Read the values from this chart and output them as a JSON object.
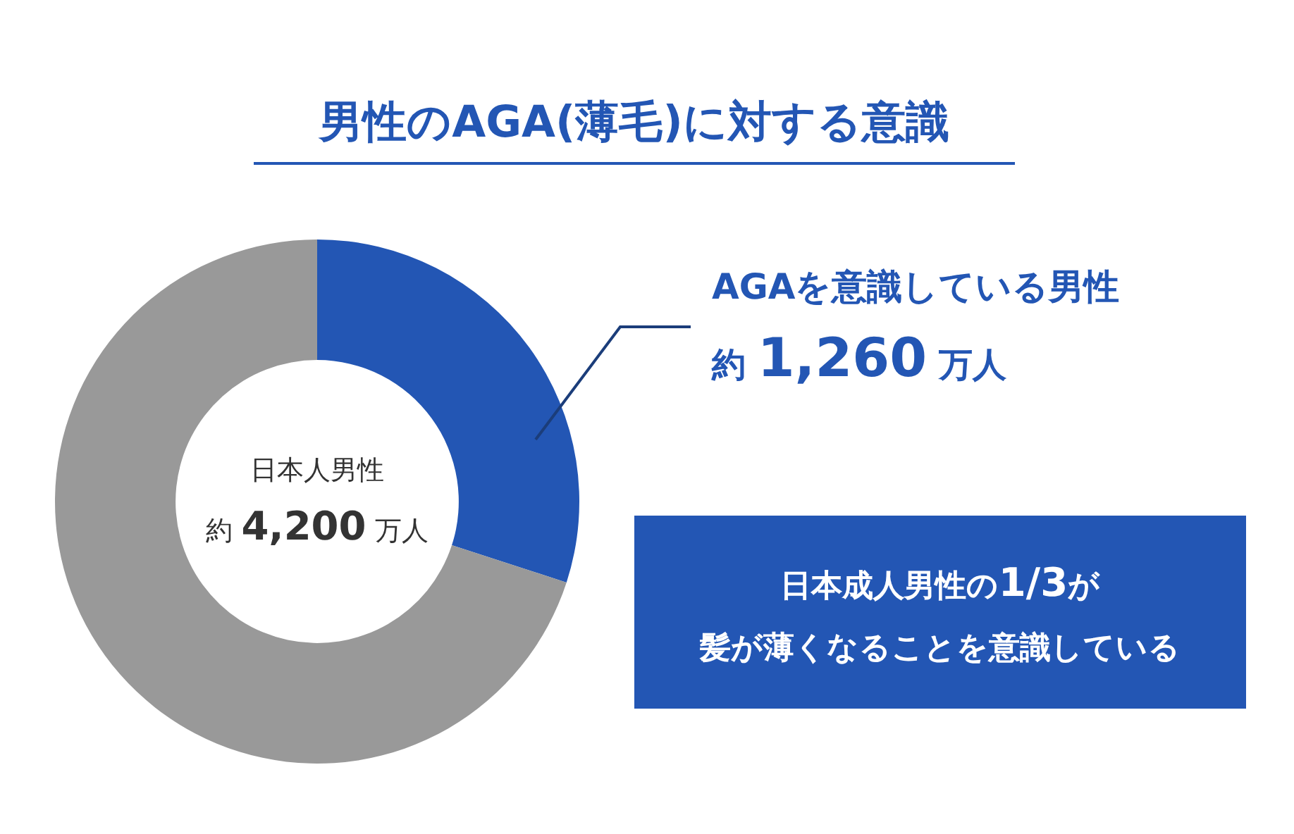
{
  "chart_data": {
    "type": "donut",
    "title": "男性のAGA(薄毛)に対する意識",
    "categories": [
      "AGAを意識している男性",
      null
    ],
    "values": [
      30,
      70
    ],
    "colors": [
      "#2356b4",
      "#999999"
    ],
    "value_labels": [
      "約 1,260 万人",
      null
    ],
    "annotations": [
      "日本人男性",
      "約 4,200 万人",
      "日本成人男性の1/3が",
      "髪が薄くなることを意識している"
    ]
  }
}
